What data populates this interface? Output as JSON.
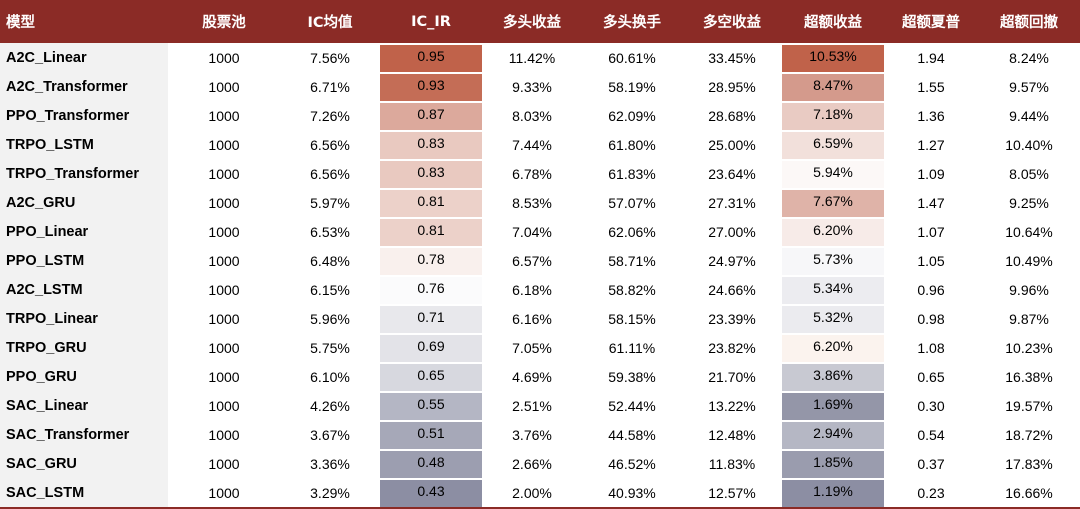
{
  "table": {
    "headers": [
      "模型",
      "股票池",
      "IC均值",
      "IC_IR",
      "多头收益",
      "多头换手",
      "多空收益",
      "超额收益",
      "超额夏普",
      "超额回撤"
    ],
    "rows": [
      {
        "model": "A2C_Linear",
        "pool": "1000",
        "ic_mean": "7.56%",
        "ic_ir": "0.95",
        "long_ret": "11.42%",
        "long_turnover": "60.61%",
        "ls_ret": "33.45%",
        "excess_ret": "10.53%",
        "excess_sharpe": "1.94",
        "excess_dd": "8.24%",
        "ic_ir_color": "#c0624a",
        "excess_color": "#c0624a"
      },
      {
        "model": "A2C_Transformer",
        "pool": "1000",
        "ic_mean": "6.71%",
        "ic_ir": "0.93",
        "long_ret": "9.33%",
        "long_turnover": "58.19%",
        "ls_ret": "28.95%",
        "excess_ret": "8.47%",
        "excess_sharpe": "1.55",
        "excess_dd": "9.57%",
        "ic_ir_color": "#c46d56",
        "excess_color": "#d49a8c"
      },
      {
        "model": "PPO_Transformer",
        "pool": "1000",
        "ic_mean": "7.26%",
        "ic_ir": "0.87",
        "long_ret": "8.03%",
        "long_turnover": "62.09%",
        "ls_ret": "28.68%",
        "excess_ret": "7.18%",
        "excess_sharpe": "1.36",
        "excess_dd": "9.44%",
        "ic_ir_color": "#dca99c",
        "excess_color": "#e9cbc3"
      },
      {
        "model": "TRPO_LSTM",
        "pool": "1000",
        "ic_mean": "6.56%",
        "ic_ir": "0.83",
        "long_ret": "7.44%",
        "long_turnover": "61.80%",
        "ls_ret": "25.00%",
        "excess_ret": "6.59%",
        "excess_sharpe": "1.27",
        "excess_dd": "10.40%",
        "ic_ir_color": "#e9c9c0",
        "excess_color": "#f2e0db"
      },
      {
        "model": "TRPO_Transformer",
        "pool": "1000",
        "ic_mean": "6.56%",
        "ic_ir": "0.83",
        "long_ret": "6.78%",
        "long_turnover": "61.83%",
        "ls_ret": "23.64%",
        "excess_ret": "5.94%",
        "excess_sharpe": "1.09",
        "excess_dd": "8.05%",
        "ic_ir_color": "#e9c9c0",
        "excess_color": "#fcf8f7"
      },
      {
        "model": "A2C_GRU",
        "pool": "1000",
        "ic_mean": "5.97%",
        "ic_ir": "0.81",
        "long_ret": "8.53%",
        "long_turnover": "57.07%",
        "ls_ret": "27.31%",
        "excess_ret": "7.67%",
        "excess_sharpe": "1.47",
        "excess_dd": "9.25%",
        "ic_ir_color": "#ecd1c9",
        "excess_color": "#dfb3a8"
      },
      {
        "model": "PPO_Linear",
        "pool": "1000",
        "ic_mean": "6.53%",
        "ic_ir": "0.81",
        "long_ret": "7.04%",
        "long_turnover": "62.06%",
        "ls_ret": "27.00%",
        "excess_ret": "6.20%",
        "excess_sharpe": "1.07",
        "excess_dd": "10.64%",
        "ic_ir_color": "#ecd1c9",
        "excess_color": "#f7ebe8"
      },
      {
        "model": "PPO_LSTM",
        "pool": "1000",
        "ic_mean": "6.48%",
        "ic_ir": "0.78",
        "long_ret": "6.57%",
        "long_turnover": "58.71%",
        "ls_ret": "24.97%",
        "excess_ret": "5.73%",
        "excess_sharpe": "1.05",
        "excess_dd": "10.49%",
        "ic_ir_color": "#f9f0ed",
        "excess_color": "#f7f7f9"
      },
      {
        "model": "A2C_LSTM",
        "pool": "1000",
        "ic_mean": "6.15%",
        "ic_ir": "0.76",
        "long_ret": "6.18%",
        "long_turnover": "58.82%",
        "ls_ret": "24.66%",
        "excess_ret": "5.34%",
        "excess_sharpe": "0.96",
        "excess_dd": "9.96%",
        "ic_ir_color": "#fbfbfc",
        "excess_color": "#ececf0"
      },
      {
        "model": "TRPO_Linear",
        "pool": "1000",
        "ic_mean": "5.96%",
        "ic_ir": "0.71",
        "long_ret": "6.16%",
        "long_turnover": "58.15%",
        "ls_ret": "23.39%",
        "excess_ret": "5.32%",
        "excess_sharpe": "0.98",
        "excess_dd": "9.87%",
        "ic_ir_color": "#e8e8ec",
        "excess_color": "#ebebef"
      },
      {
        "model": "TRPO_GRU",
        "pool": "1000",
        "ic_mean": "5.75%",
        "ic_ir": "0.69",
        "long_ret": "7.05%",
        "long_turnover": "61.11%",
        "ls_ret": "23.82%",
        "excess_ret": "6.20%",
        "excess_sharpe": "1.08",
        "excess_dd": "10.23%",
        "ic_ir_color": "#e3e3e8",
        "excess_color": "#fbf3ee"
      },
      {
        "model": "PPO_GRU",
        "pool": "1000",
        "ic_mean": "6.10%",
        "ic_ir": "0.65",
        "long_ret": "4.69%",
        "long_turnover": "59.38%",
        "ls_ret": "21.70%",
        "excess_ret": "3.86%",
        "excess_sharpe": "0.65",
        "excess_dd": "16.38%",
        "ic_ir_color": "#d7d8df",
        "excess_color": "#c8c9d2"
      },
      {
        "model": "SAC_Linear",
        "pool": "1000",
        "ic_mean": "4.26%",
        "ic_ir": "0.55",
        "long_ret": "2.51%",
        "long_turnover": "52.44%",
        "ls_ret": "13.22%",
        "excess_ret": "1.69%",
        "excess_sharpe": "0.30",
        "excess_dd": "19.57%",
        "ic_ir_color": "#b4b6c4",
        "excess_color": "#9496a8"
      },
      {
        "model": "SAC_Transformer",
        "pool": "1000",
        "ic_mean": "3.67%",
        "ic_ir": "0.51",
        "long_ret": "3.76%",
        "long_turnover": "44.58%",
        "ls_ret": "12.48%",
        "excess_ret": "2.94%",
        "excess_sharpe": "0.54",
        "excess_dd": "18.72%",
        "ic_ir_color": "#a6a8b8",
        "excess_color": "#b5b7c4"
      },
      {
        "model": "SAC_GRU",
        "pool": "1000",
        "ic_mean": "3.36%",
        "ic_ir": "0.48",
        "long_ret": "2.66%",
        "long_turnover": "46.52%",
        "ls_ret": "11.83%",
        "excess_ret": "1.85%",
        "excess_sharpe": "0.37",
        "excess_dd": "17.83%",
        "ic_ir_color": "#9c9eb0",
        "excess_color": "#9a9cae"
      },
      {
        "model": "SAC_LSTM",
        "pool": "1000",
        "ic_mean": "3.29%",
        "ic_ir": "0.43",
        "long_ret": "2.00%",
        "long_turnover": "40.93%",
        "ls_ret": "12.57%",
        "excess_ret": "1.19%",
        "excess_sharpe": "0.23",
        "excess_dd": "16.66%",
        "ic_ir_color": "#8c8ea3",
        "excess_color": "#8c8ea3"
      }
    ]
  }
}
